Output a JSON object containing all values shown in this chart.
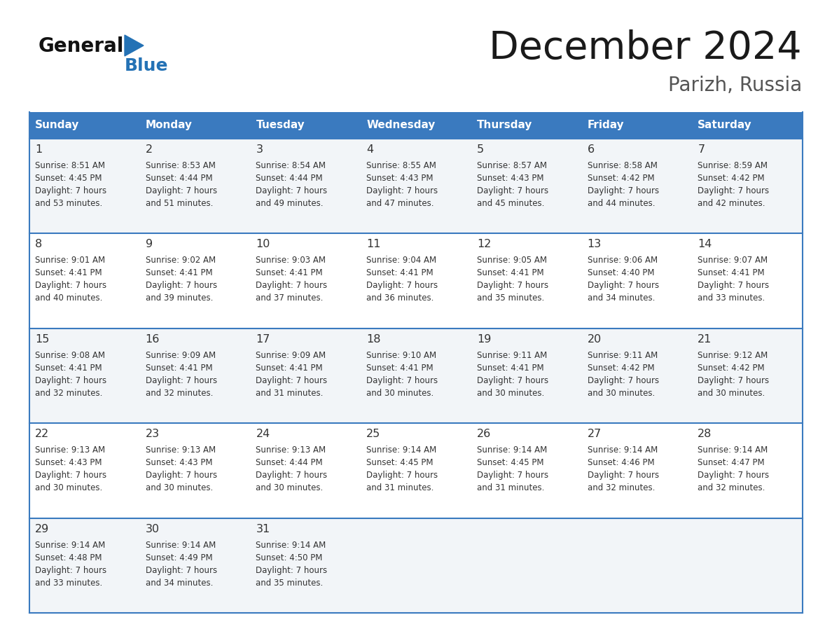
{
  "title": "December 2024",
  "subtitle": "Parizh, Russia",
  "header_bg_color": "#3a7abf",
  "header_text_color": "#ffffff",
  "day_names": [
    "Sunday",
    "Monday",
    "Tuesday",
    "Wednesday",
    "Thursday",
    "Friday",
    "Saturday"
  ],
  "row_bg_even": "#f2f5f8",
  "row_bg_odd": "#ffffff",
  "border_color": "#3a7abf",
  "text_color": "#333333",
  "title_color": "#1a1a1a",
  "subtitle_color": "#555555",
  "logo_black": "#111111",
  "logo_blue": "#2472b5",
  "weeks": [
    [
      {
        "day": 1,
        "sunrise": "8:51 AM",
        "sunset": "4:45 PM",
        "daylight_hours": 7,
        "daylight_minutes": 53
      },
      {
        "day": 2,
        "sunrise": "8:53 AM",
        "sunset": "4:44 PM",
        "daylight_hours": 7,
        "daylight_minutes": 51
      },
      {
        "day": 3,
        "sunrise": "8:54 AM",
        "sunset": "4:44 PM",
        "daylight_hours": 7,
        "daylight_minutes": 49
      },
      {
        "day": 4,
        "sunrise": "8:55 AM",
        "sunset": "4:43 PM",
        "daylight_hours": 7,
        "daylight_minutes": 47
      },
      {
        "day": 5,
        "sunrise": "8:57 AM",
        "sunset": "4:43 PM",
        "daylight_hours": 7,
        "daylight_minutes": 45
      },
      {
        "day": 6,
        "sunrise": "8:58 AM",
        "sunset": "4:42 PM",
        "daylight_hours": 7,
        "daylight_minutes": 44
      },
      {
        "day": 7,
        "sunrise": "8:59 AM",
        "sunset": "4:42 PM",
        "daylight_hours": 7,
        "daylight_minutes": 42
      }
    ],
    [
      {
        "day": 8,
        "sunrise": "9:01 AM",
        "sunset": "4:41 PM",
        "daylight_hours": 7,
        "daylight_minutes": 40
      },
      {
        "day": 9,
        "sunrise": "9:02 AM",
        "sunset": "4:41 PM",
        "daylight_hours": 7,
        "daylight_minutes": 39
      },
      {
        "day": 10,
        "sunrise": "9:03 AM",
        "sunset": "4:41 PM",
        "daylight_hours": 7,
        "daylight_minutes": 37
      },
      {
        "day": 11,
        "sunrise": "9:04 AM",
        "sunset": "4:41 PM",
        "daylight_hours": 7,
        "daylight_minutes": 36
      },
      {
        "day": 12,
        "sunrise": "9:05 AM",
        "sunset": "4:41 PM",
        "daylight_hours": 7,
        "daylight_minutes": 35
      },
      {
        "day": 13,
        "sunrise": "9:06 AM",
        "sunset": "4:40 PM",
        "daylight_hours": 7,
        "daylight_minutes": 34
      },
      {
        "day": 14,
        "sunrise": "9:07 AM",
        "sunset": "4:41 PM",
        "daylight_hours": 7,
        "daylight_minutes": 33
      }
    ],
    [
      {
        "day": 15,
        "sunrise": "9:08 AM",
        "sunset": "4:41 PM",
        "daylight_hours": 7,
        "daylight_minutes": 32
      },
      {
        "day": 16,
        "sunrise": "9:09 AM",
        "sunset": "4:41 PM",
        "daylight_hours": 7,
        "daylight_minutes": 32
      },
      {
        "day": 17,
        "sunrise": "9:09 AM",
        "sunset": "4:41 PM",
        "daylight_hours": 7,
        "daylight_minutes": 31
      },
      {
        "day": 18,
        "sunrise": "9:10 AM",
        "sunset": "4:41 PM",
        "daylight_hours": 7,
        "daylight_minutes": 30
      },
      {
        "day": 19,
        "sunrise": "9:11 AM",
        "sunset": "4:41 PM",
        "daylight_hours": 7,
        "daylight_minutes": 30
      },
      {
        "day": 20,
        "sunrise": "9:11 AM",
        "sunset": "4:42 PM",
        "daylight_hours": 7,
        "daylight_minutes": 30
      },
      {
        "day": 21,
        "sunrise": "9:12 AM",
        "sunset": "4:42 PM",
        "daylight_hours": 7,
        "daylight_minutes": 30
      }
    ],
    [
      {
        "day": 22,
        "sunrise": "9:13 AM",
        "sunset": "4:43 PM",
        "daylight_hours": 7,
        "daylight_minutes": 30
      },
      {
        "day": 23,
        "sunrise": "9:13 AM",
        "sunset": "4:43 PM",
        "daylight_hours": 7,
        "daylight_minutes": 30
      },
      {
        "day": 24,
        "sunrise": "9:13 AM",
        "sunset": "4:44 PM",
        "daylight_hours": 7,
        "daylight_minutes": 30
      },
      {
        "day": 25,
        "sunrise": "9:14 AM",
        "sunset": "4:45 PM",
        "daylight_hours": 7,
        "daylight_minutes": 31
      },
      {
        "day": 26,
        "sunrise": "9:14 AM",
        "sunset": "4:45 PM",
        "daylight_hours": 7,
        "daylight_minutes": 31
      },
      {
        "day": 27,
        "sunrise": "9:14 AM",
        "sunset": "4:46 PM",
        "daylight_hours": 7,
        "daylight_minutes": 32
      },
      {
        "day": 28,
        "sunrise": "9:14 AM",
        "sunset": "4:47 PM",
        "daylight_hours": 7,
        "daylight_minutes": 32
      }
    ],
    [
      {
        "day": 29,
        "sunrise": "9:14 AM",
        "sunset": "4:48 PM",
        "daylight_hours": 7,
        "daylight_minutes": 33
      },
      {
        "day": 30,
        "sunrise": "9:14 AM",
        "sunset": "4:49 PM",
        "daylight_hours": 7,
        "daylight_minutes": 34
      },
      {
        "day": 31,
        "sunrise": "9:14 AM",
        "sunset": "4:50 PM",
        "daylight_hours": 7,
        "daylight_minutes": 35
      },
      null,
      null,
      null,
      null
    ]
  ]
}
